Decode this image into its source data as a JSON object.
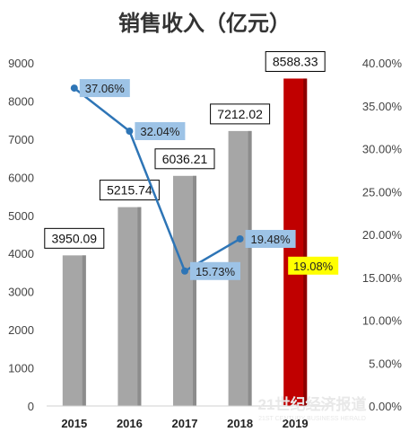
{
  "chart_data": {
    "type": "bar+line",
    "title": "销售收入（亿元）",
    "categories": [
      "2015",
      "2016",
      "2017",
      "2018",
      "2019"
    ],
    "series": [
      {
        "type": "bar",
        "values": [
          3950.09,
          5215.74,
          6036.21,
          7212.02,
          8588.33
        ],
        "value_labels": [
          "3950.09",
          "5215.74",
          "6036.21",
          "7212.02",
          "8588.33"
        ],
        "color": "#a6a6a6",
        "highlight_color": "#c00000",
        "highlight_index": 4
      },
      {
        "type": "line",
        "axis": "right",
        "values": [
          37.06,
          32.04,
          15.73,
          19.48,
          19.08
        ],
        "value_labels": [
          "37.06%",
          "32.04%",
          "15.73%",
          "19.48%",
          "19.08%"
        ],
        "color": "#2e75b6",
        "label_bg": "#9dc3e6",
        "highlight_label_bg": "#ffff00",
        "line_end_index": 3
      }
    ],
    "y_left": {
      "min": 0,
      "max": 9000,
      "step": 1000,
      "ticks": [
        "0",
        "1000",
        "2000",
        "3000",
        "4000",
        "5000",
        "6000",
        "7000",
        "8000",
        "9000"
      ]
    },
    "y_right": {
      "min": 0,
      "max": 40,
      "step": 5,
      "ticks": [
        "0.00%",
        "5.00%",
        "10.00%",
        "15.00%",
        "20.00%",
        "25.00%",
        "30.00%",
        "35.00%",
        "40.00%"
      ]
    },
    "grid": false,
    "legend": "none"
  },
  "watermark": {
    "main": "21世纪经济报道",
    "sub": "21ST CENTURY BUSINESS HERALD"
  }
}
